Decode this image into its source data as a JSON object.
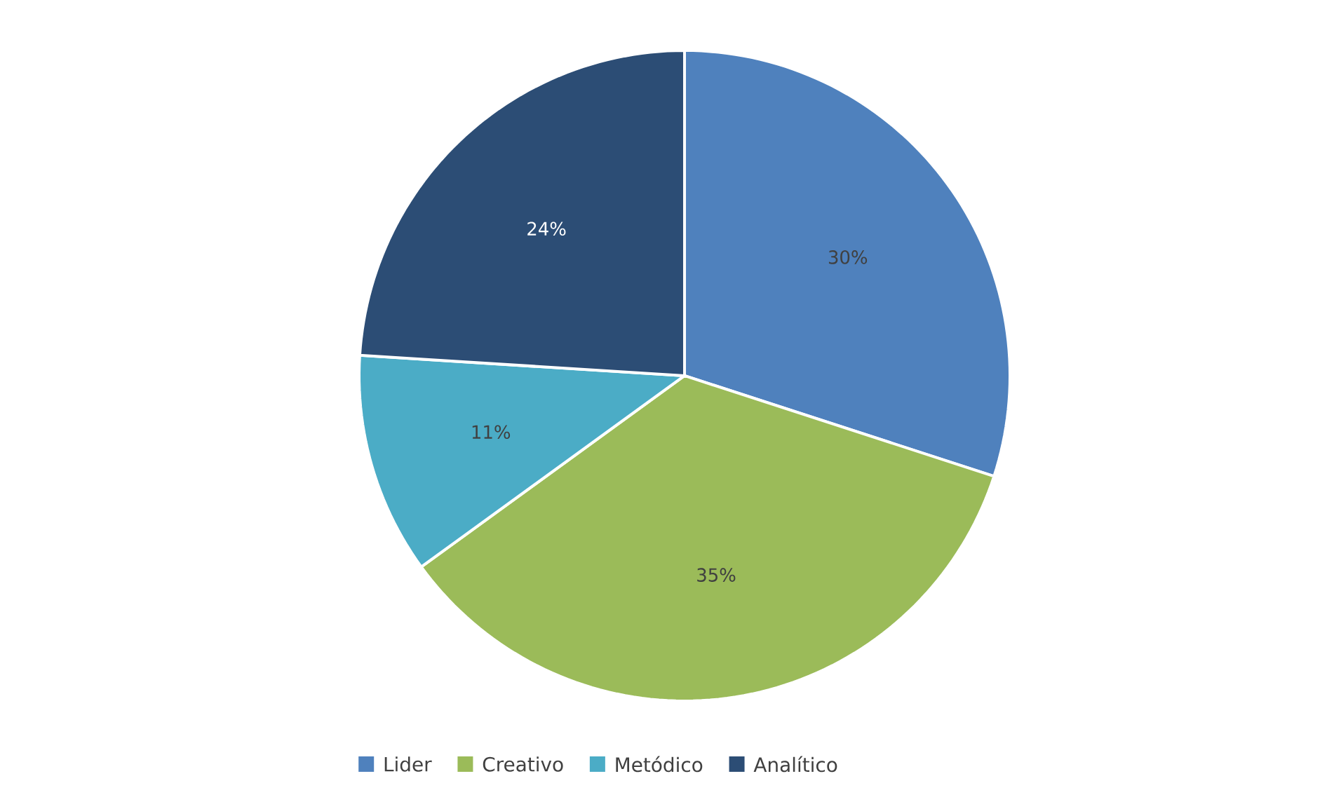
{
  "chart_data": {
    "type": "pie",
    "categories": [
      "Lider",
      "Creativo",
      "Metódico",
      "Analítico"
    ],
    "values": [
      30,
      35,
      11,
      24
    ],
    "value_labels": [
      "30%",
      "35%",
      "11%",
      "24%"
    ],
    "colors": [
      "#4f81bd",
      "#9bbb59",
      "#4bacc6",
      "#2c4d75"
    ],
    "legend": "bottom"
  }
}
